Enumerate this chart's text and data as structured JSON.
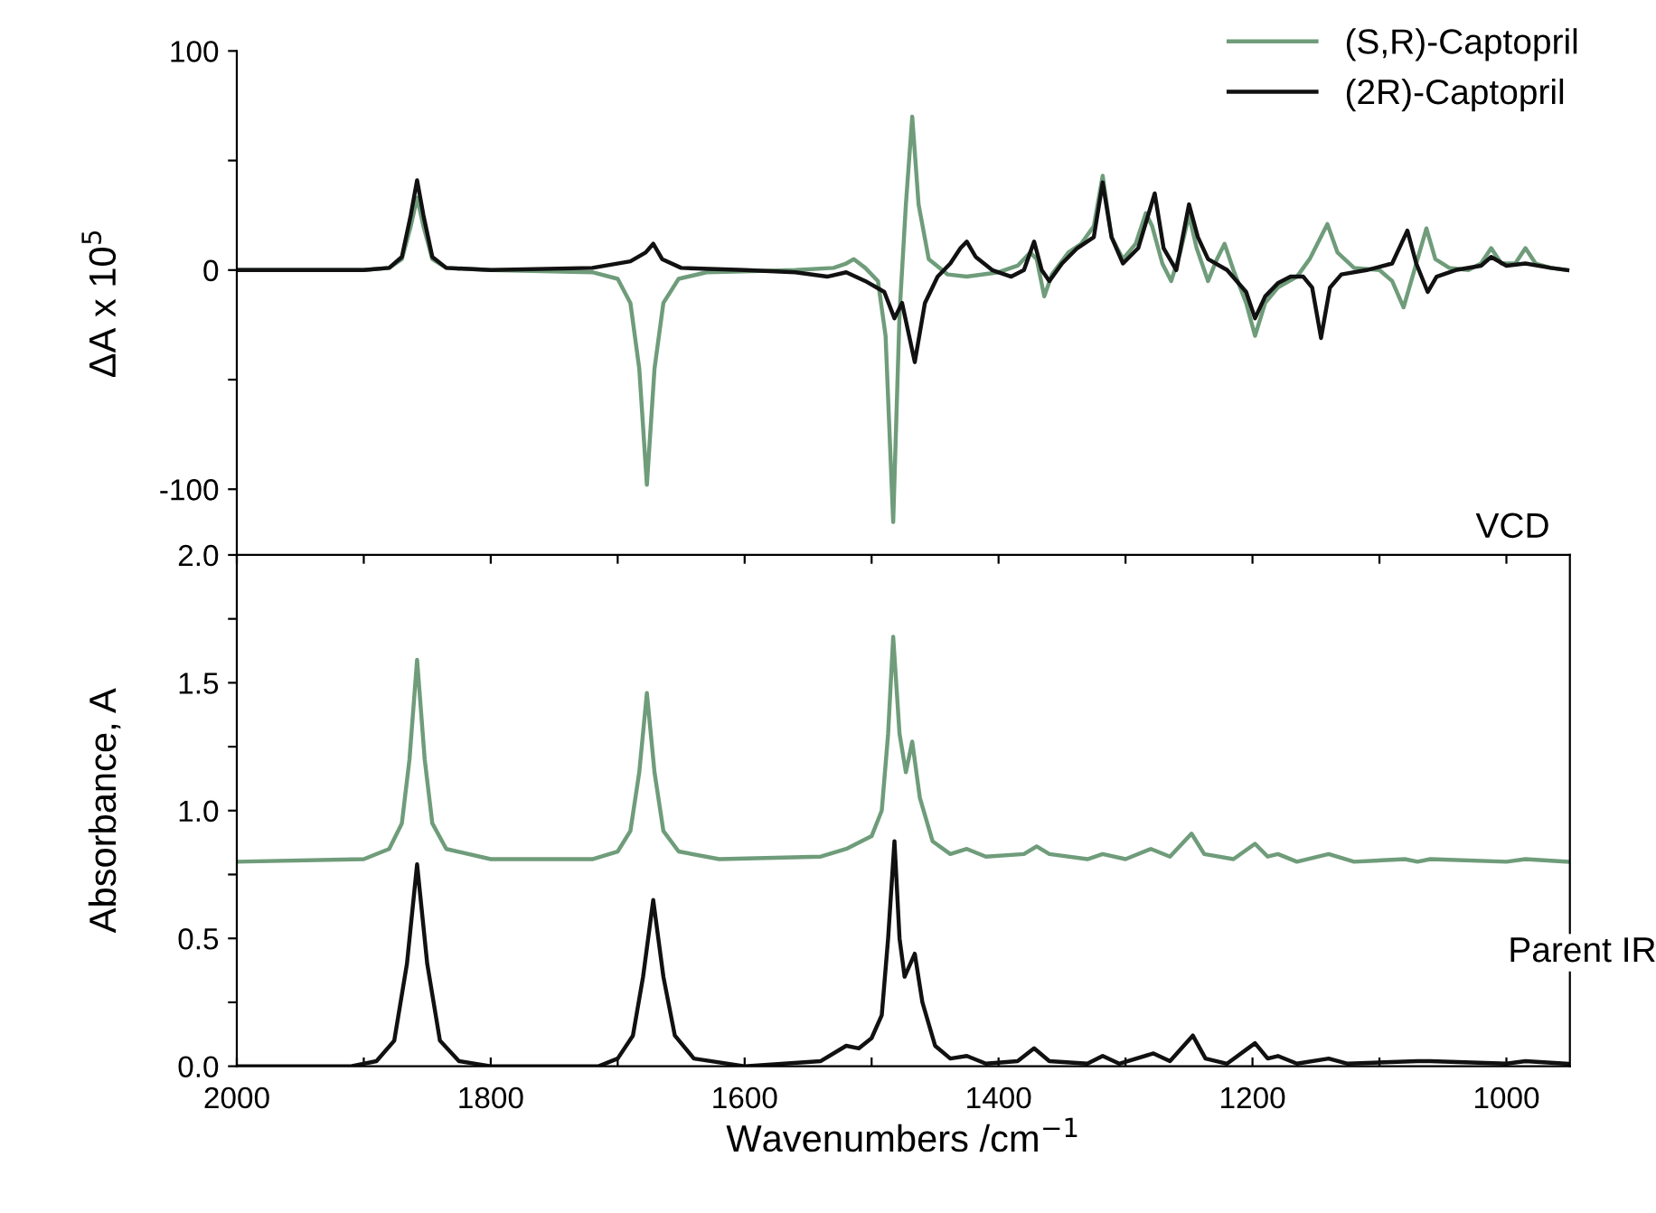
{
  "chart_data": [
    {
      "type": "line",
      "ylabel": "ΔA x 10$^{5}$",
      "xlim": [
        2000,
        950
      ],
      "ylim": [
        -130,
        100
      ],
      "yticks": [
        -100,
        {
          "value": -50,
          "label": null
        },
        0,
        {
          "value": 50,
          "label": null
        },
        100
      ],
      "tick_labels": "y",
      "legend": "top right",
      "grid": false,
      "annotations": [
        "VCD"
      ],
      "series": [
        {
          "name": "(S,R)-Captopril",
          "color": "#6f9c7a",
          "x": [
            2000,
            1900,
            1880,
            1870,
            1863,
            1858,
            1853,
            1846,
            1835,
            1800,
            1720,
            1700,
            1690,
            1683,
            1677,
            1671,
            1664,
            1652,
            1630,
            1560,
            1530,
            1520,
            1514,
            1505,
            1495,
            1489,
            1483,
            1478,
            1473,
            1468,
            1463,
            1455,
            1440,
            1425,
            1400,
            1385,
            1375,
            1370,
            1364,
            1358,
            1345,
            1335,
            1325,
            1318,
            1311,
            1302,
            1292,
            1284,
            1279,
            1271,
            1264,
            1257,
            1250,
            1244,
            1235,
            1228,
            1222,
            1215,
            1205,
            1198,
            1190,
            1180,
            1165,
            1155,
            1141,
            1133,
            1120,
            1100,
            1090,
            1081,
            1074,
            1063,
            1056,
            1045,
            1030,
            1020,
            1012,
            1004,
            993,
            985,
            977,
            965,
            952
          ],
          "values": [
            0,
            0,
            1,
            5,
            20,
            33,
            20,
            5,
            1,
            0,
            -1,
            -4,
            -15,
            -45,
            -98,
            -45,
            -15,
            -4,
            -1,
            0,
            1,
            3,
            5,
            1,
            -5,
            -30,
            -115,
            -20,
            30,
            70,
            30,
            5,
            -2,
            -3,
            -1,
            2,
            8,
            5,
            -12,
            -2,
            8,
            12,
            20,
            43,
            15,
            5,
            12,
            26,
            20,
            3,
            -5,
            8,
            25,
            10,
            -5,
            5,
            12,
            0,
            -15,
            -30,
            -15,
            -8,
            -3,
            5,
            21,
            8,
            1,
            0,
            -5,
            -17,
            -3,
            19,
            5,
            1,
            0,
            3,
            10,
            3,
            3,
            10,
            3,
            1,
            0
          ]
        },
        {
          "name": "(2R)-Captopril",
          "color": "#111111",
          "x": [
            2000,
            1900,
            1880,
            1870,
            1863,
            1858,
            1853,
            1846,
            1835,
            1800,
            1720,
            1690,
            1678,
            1672,
            1665,
            1650,
            1600,
            1560,
            1535,
            1520,
            1505,
            1490,
            1482,
            1476,
            1466,
            1458,
            1448,
            1438,
            1430,
            1425,
            1418,
            1405,
            1390,
            1380,
            1372,
            1366,
            1360,
            1350,
            1338,
            1325,
            1318,
            1311,
            1302,
            1290,
            1277,
            1270,
            1260,
            1250,
            1243,
            1235,
            1220,
            1205,
            1198,
            1190,
            1180,
            1170,
            1160,
            1153,
            1146,
            1139,
            1130,
            1110,
            1090,
            1078,
            1071,
            1062,
            1055,
            1040,
            1020,
            1012,
            1000,
            985,
            965,
            952
          ],
          "values": [
            0,
            0,
            1,
            6,
            25,
            41,
            25,
            6,
            1,
            0,
            1,
            4,
            8,
            12,
            5,
            1,
            0,
            -1,
            -3,
            -1,
            -5,
            -10,
            -22,
            -15,
            -42,
            -15,
            -3,
            3,
            10,
            13,
            6,
            0,
            -3,
            0,
            13,
            0,
            -5,
            3,
            10,
            15,
            40,
            15,
            3,
            10,
            35,
            10,
            0,
            30,
            15,
            5,
            0,
            -10,
            -22,
            -12,
            -6,
            -3,
            -3,
            -8,
            -31,
            -8,
            -2,
            0,
            3,
            18,
            3,
            -10,
            -3,
            0,
            2,
            6,
            2,
            3,
            1,
            0
          ]
        }
      ]
    },
    {
      "type": "line",
      "xlabel": "Wavenumbers /cm$^{−1}$",
      "ylabel": "Absorbance, A",
      "xlim": [
        2000,
        950
      ],
      "ylim": [
        0,
        2.0
      ],
      "xticks": [
        2000,
        {
          "value": 1900,
          "label": null
        },
        1800,
        {
          "value": 1700,
          "label": null
        },
        1600,
        {
          "value": 1500,
          "label": null
        },
        1400,
        {
          "value": 1300,
          "label": null
        },
        1200,
        {
          "value": 1100,
          "label": null
        },
        1000
      ],
      "yticks": [
        {
          "value": 0,
          "label": "0.0"
        },
        {
          "value": 0.25,
          "label": null
        },
        0.5,
        {
          "value": 0.75,
          "label": null
        },
        {
          "value": 1.0,
          "label": "1.0"
        },
        {
          "value": 1.25,
          "label": null
        },
        1.5,
        {
          "value": 1.75,
          "label": null
        },
        {
          "value": 2.0,
          "label": "2.0"
        }
      ],
      "grid": false,
      "annotations": [
        "Parent IR"
      ],
      "series": [
        {
          "color": "#6f9c7a",
          "x": [
            2000,
            1900,
            1880,
            1870,
            1864,
            1858,
            1852,
            1846,
            1835,
            1800,
            1720,
            1700,
            1690,
            1683,
            1677,
            1671,
            1664,
            1652,
            1620,
            1540,
            1520,
            1500,
            1492,
            1487,
            1483,
            1478,
            1473,
            1468,
            1462,
            1452,
            1438,
            1425,
            1410,
            1380,
            1370,
            1360,
            1330,
            1318,
            1300,
            1280,
            1265,
            1248,
            1238,
            1215,
            1198,
            1188,
            1180,
            1165,
            1140,
            1120,
            1080,
            1070,
            1060,
            1000,
            985,
            952
          ],
          "values": [
            0.8,
            0.81,
            0.85,
            0.95,
            1.2,
            1.59,
            1.2,
            0.95,
            0.85,
            0.81,
            0.81,
            0.84,
            0.92,
            1.15,
            1.46,
            1.15,
            0.92,
            0.84,
            0.81,
            0.82,
            0.85,
            0.9,
            1.0,
            1.3,
            1.68,
            1.3,
            1.15,
            1.27,
            1.05,
            0.88,
            0.83,
            0.85,
            0.82,
            0.83,
            0.86,
            0.83,
            0.81,
            0.83,
            0.81,
            0.85,
            0.82,
            0.91,
            0.83,
            0.81,
            0.87,
            0.82,
            0.83,
            0.8,
            0.83,
            0.8,
            0.81,
            0.8,
            0.81,
            0.8,
            0.81,
            0.8
          ]
        },
        {
          "color": "#111111",
          "x": [
            2000,
            1910,
            1890,
            1876,
            1866,
            1858,
            1850,
            1840,
            1825,
            1800,
            1715,
            1700,
            1688,
            1680,
            1672,
            1664,
            1655,
            1640,
            1600,
            1540,
            1520,
            1510,
            1500,
            1492,
            1487,
            1482,
            1478,
            1474,
            1466,
            1460,
            1450,
            1438,
            1425,
            1410,
            1385,
            1372,
            1360,
            1330,
            1318,
            1305,
            1278,
            1265,
            1247,
            1237,
            1220,
            1198,
            1188,
            1180,
            1165,
            1140,
            1125,
            1070,
            1060,
            1000,
            985,
            952
          ],
          "values": [
            0.0,
            0.0,
            0.02,
            0.1,
            0.4,
            0.79,
            0.4,
            0.1,
            0.02,
            0.0,
            0.0,
            0.03,
            0.12,
            0.35,
            0.65,
            0.35,
            0.12,
            0.03,
            0.0,
            0.02,
            0.08,
            0.07,
            0.11,
            0.2,
            0.5,
            0.88,
            0.5,
            0.35,
            0.44,
            0.25,
            0.08,
            0.03,
            0.04,
            0.01,
            0.02,
            0.07,
            0.02,
            0.01,
            0.04,
            0.01,
            0.05,
            0.02,
            0.12,
            0.03,
            0.01,
            0.09,
            0.03,
            0.04,
            0.01,
            0.03,
            0.01,
            0.02,
            0.02,
            0.01,
            0.02,
            0.01
          ]
        }
      ]
    }
  ]
}
